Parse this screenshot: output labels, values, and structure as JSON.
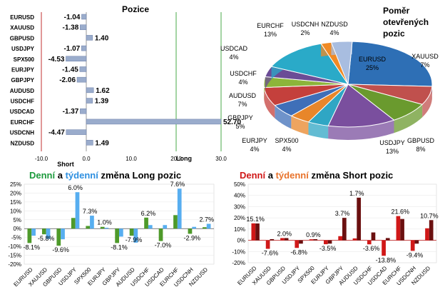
{
  "chart_data": [
    {
      "type": "bar",
      "title": "Pozice",
      "categories": [
        "EURUSD",
        "XAUUSD",
        "GBPUSD",
        "USDJPY",
        "SPX500",
        "EURJPY",
        "GBPJPY",
        "AUDUSD",
        "USDCHF",
        "USDCAD",
        "EURCHF",
        "USDCNH",
        "NZDUSD"
      ],
      "values": [
        -1.04,
        -1.38,
        1.4,
        -1.07,
        -4.53,
        -1.45,
        -2.06,
        1.62,
        1.39,
        -1.37,
        52.7,
        -4.47,
        1.49
      ],
      "value_labels": [
        "-1.04",
        "-1.38",
        "1.40",
        "-1.07",
        "-4.53",
        "-1.45",
        "-2.06",
        "1.62",
        "1.39",
        "-1.37",
        "52.70",
        "-4.47",
        "1.49"
      ],
      "xlim": [
        -10,
        30
      ],
      "xticks": [
        "-10.0",
        "0.0",
        "10.0",
        "20.0",
        "30.0"
      ],
      "short_label": "Short",
      "long_label": "Long"
    },
    {
      "type": "pie",
      "title_lines": [
        "Poměr",
        "otevřených",
        "pozic"
      ],
      "slices": [
        {
          "name": "EURUSD",
          "value": 25,
          "label": "25%",
          "color": "#2e6fb5"
        },
        {
          "name": "XAUUSD",
          "value": 7,
          "label": "7%",
          "color": "#c0504d"
        },
        {
          "name": "GBPUSD",
          "value": 8,
          "label": "8%",
          "color": "#6a9a2e"
        },
        {
          "name": "USDJPY",
          "value": 13,
          "label": "13%",
          "color": "#7a4f9e"
        },
        {
          "name": "SPX500",
          "value": 4,
          "label": "4%",
          "color": "#2fa6c4"
        },
        {
          "name": "EURJPY",
          "value": 4,
          "label": "4%",
          "color": "#e8862a"
        },
        {
          "name": "GBPJPY",
          "value": 5,
          "label": "5%",
          "color": "#3f6fb8"
        },
        {
          "name": "AUDUSD",
          "value": 7,
          "label": "7%",
          "color": "#c4403c"
        },
        {
          "name": "USDCHF",
          "value": 4,
          "label": "4%",
          "color": "#8cb53a"
        },
        {
          "name": "USDCAD",
          "value": 4,
          "label": "4%",
          "color": "#6b4c96"
        },
        {
          "name": "EURCHF",
          "value": 13,
          "label": "13%",
          "color": "#2aaac8"
        },
        {
          "name": "USDCNH",
          "value": 2,
          "label": "2%",
          "color": "#f08a24"
        },
        {
          "name": "NZDUSD",
          "value": 4,
          "label": "4%",
          "color": "#a8bde0"
        }
      ]
    },
    {
      "type": "bar",
      "title_parts": [
        "Denní",
        " a ",
        "týdenní",
        " změna Long pozic"
      ],
      "title_colors": [
        "#1c9a3c",
        "#000000",
        "#2d8fe0",
        "#000000"
      ],
      "categories": [
        "EURUSD",
        "XAUUSD",
        "GBPUSD",
        "USDJPY",
        "SPX500",
        "EURJPY",
        "GBPJPY",
        "AUDUSD",
        "USDCHF",
        "USDCAD",
        "EURCHF",
        "USDCNH",
        "NZDUSD"
      ],
      "series": [
        {
          "values": [
            -8.1,
            -3.2,
            -9.6,
            6.0,
            1.5,
            1.0,
            -8.1,
            -4.0,
            6.2,
            -7.0,
            7.6,
            -2.9,
            0.8
          ],
          "color": "#4e9a2a"
        },
        {
          "values": [
            -4.0,
            -5.8,
            -6.0,
            20.5,
            7.3,
            0.5,
            -4.5,
            -7.9,
            2.0,
            2.0,
            22.5,
            1.0,
            2.7
          ],
          "color": "#57aef0"
        }
      ],
      "value_labels": [
        {
          "i": 0,
          "text": "-8.1%"
        },
        {
          "i": 1,
          "text": "-5.8%"
        },
        {
          "i": 2,
          "text": "-9.6%"
        },
        {
          "i": 3,
          "text": "6.0%"
        },
        {
          "i": 4,
          "text": "7.3%"
        },
        {
          "i": 5,
          "text": "1.0%"
        },
        {
          "i": 6,
          "text": "-8.1%"
        },
        {
          "i": 7,
          "text": "-7.9%"
        },
        {
          "i": 8,
          "text": "6.2%"
        },
        {
          "i": 9,
          "text": "-7.0%"
        },
        {
          "i": 10,
          "text": "7.6%"
        },
        {
          "i": 11,
          "text": "-2.9%"
        },
        {
          "i": 12,
          "text": "2.7%"
        }
      ],
      "ylim": [
        -20,
        25
      ],
      "yticks": [
        "25%",
        "20%",
        "15%",
        "10%",
        "5%",
        "0%",
        "-5%",
        "-10%",
        "-15%",
        "-20%"
      ]
    },
    {
      "type": "bar",
      "title_parts": [
        "Denní",
        " a ",
        "týdenní",
        " změna Short pozic"
      ],
      "title_colors": [
        "#d01818",
        "#000000",
        "#e8722a",
        "#000000"
      ],
      "categories": [
        "EURUSD",
        "XAUUSD",
        "GBPUSD",
        "USDJPY",
        "SPX500",
        "EURJPY",
        "GBPJPY",
        "AUDUSD",
        "USDCHF",
        "USDCAD",
        "EURCHF",
        "USDCNH",
        "NZDUSD"
      ],
      "series": [
        {
          "values": [
            15.1,
            -7.6,
            2.0,
            -6.8,
            0.9,
            -3.5,
            3.7,
            1.7,
            -3.6,
            -13.8,
            21.6,
            -9.4,
            10.7
          ],
          "color": "#d01818"
        },
        {
          "values": [
            15.0,
            1.0,
            2.0,
            -3.0,
            1.0,
            -3.0,
            20.0,
            38.0,
            7.0,
            2.0,
            19.0,
            -3.0,
            18.0
          ],
          "color": "#6b1010"
        }
      ],
      "value_labels": [
        {
          "i": 0,
          "text": "15.1%"
        },
        {
          "i": 1,
          "text": "-7.6%"
        },
        {
          "i": 2,
          "text": "2.0%"
        },
        {
          "i": 3,
          "text": "-6.8%"
        },
        {
          "i": 4,
          "text": "0.9%"
        },
        {
          "i": 5,
          "text": "-3.5%"
        },
        {
          "i": 6,
          "text": "3.7%"
        },
        {
          "i": 7,
          "text": "1.7%"
        },
        {
          "i": 8,
          "text": "-3.6%"
        },
        {
          "i": 9,
          "text": "-13.8%"
        },
        {
          "i": 10,
          "text": "21.6%"
        },
        {
          "i": 11,
          "text": "-9.4%"
        },
        {
          "i": 12,
          "text": "10.7%"
        }
      ],
      "ylim": [
        -20,
        50
      ],
      "yticks": [
        "50%",
        "40%",
        "30%",
        "20%",
        "10%",
        "0%",
        "-10%",
        "-20%"
      ]
    }
  ]
}
